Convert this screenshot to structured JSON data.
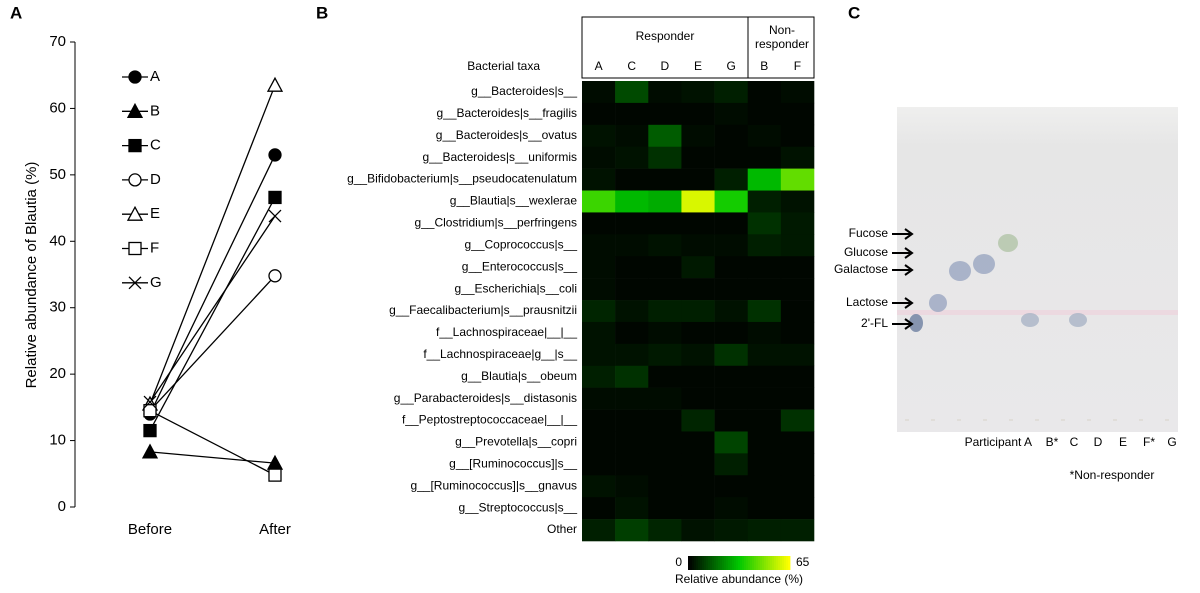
{
  "chart_data": [
    {
      "type": "line",
      "panel_label": "A",
      "y_label": "Relative abundance of Blautia (%)",
      "categories": [
        "Before",
        "After"
      ],
      "ylim": [
        0,
        70
      ],
      "yticks": [
        0,
        10,
        20,
        30,
        40,
        50,
        60,
        70
      ],
      "color": "#000000",
      "series": [
        {
          "name": "A",
          "marker": "circle-filled",
          "values": [
            14,
            53
          ]
        },
        {
          "name": "B",
          "marker": "triangle-filled",
          "values": [
            8.3,
            6.6
          ]
        },
        {
          "name": "C",
          "marker": "square-filled",
          "values": [
            11.5,
            46.6
          ]
        },
        {
          "name": "D",
          "marker": "circle-open",
          "values": [
            14.5,
            34.8
          ]
        },
        {
          "name": "E",
          "marker": "triangle-open",
          "values": [
            15.5,
            63.5
          ]
        },
        {
          "name": "F",
          "marker": "square-open",
          "values": [
            14.5,
            4.8
          ]
        },
        {
          "name": "G",
          "marker": "x",
          "values": [
            15.8,
            43.8
          ]
        }
      ]
    },
    {
      "type": "heatmap",
      "panel_label": "B",
      "row_header": "Bacterial taxa",
      "groups": [
        {
          "name": "Responder",
          "span": 5
        },
        {
          "name": "Non-responder",
          "span": 2
        }
      ],
      "columns": [
        "A",
        "C",
        "D",
        "E",
        "G",
        "B",
        "F"
      ],
      "rows": [
        "g__Bacteroides|s__",
        "g__Bacteroides|s__fragilis",
        "g__Bacteroides|s__ovatus",
        "g__Bacteroides|s__uniformis",
        "g__Bifidobacterium|s__pseudocatenulatum",
        "g__Blautia|s__wexlerae",
        "g__Clostridium|s__perfringens",
        "g__Coprococcus|s__",
        "g__Enterococcus|s__",
        "g__Escherichia|s__coli",
        "g__Faecalibacterium|s__prausnitzii",
        "f__Lachnospiraceae|__|__",
        "f__Lachnospiraceae|g__|s__",
        "g__Blautia|s__obeum",
        "g__Parabacteroides|s__distasonis",
        "f__Peptostreptococcaceae|__|__",
        "g__Prevotella|s__copri",
        "g__[Ruminococcus]|s__",
        "g__[Ruminococcus]|s__gnavus",
        "g__Streptococcus|s__",
        "Other"
      ],
      "values": [
        [
          2,
          12,
          2,
          3,
          5,
          1,
          2
        ],
        [
          1,
          1,
          1,
          1,
          2,
          1,
          1
        ],
        [
          3,
          2,
          15,
          2,
          1,
          2,
          1
        ],
        [
          2,
          3,
          8,
          1,
          1,
          1,
          3
        ],
        [
          3,
          1,
          1,
          1,
          5,
          30,
          45
        ],
        [
          40,
          30,
          28,
          60,
          35,
          5,
          3
        ],
        [
          1,
          1,
          1,
          1,
          1,
          8,
          4
        ],
        [
          2,
          2,
          3,
          2,
          2,
          5,
          4
        ],
        [
          2,
          1,
          1,
          4,
          1,
          1,
          1
        ],
        [
          2,
          1,
          1,
          1,
          1,
          1,
          1
        ],
        [
          6,
          3,
          5,
          5,
          3,
          8,
          1
        ],
        [
          3,
          1,
          2,
          1,
          1,
          2,
          1
        ],
        [
          3,
          3,
          4,
          3,
          8,
          3,
          3
        ],
        [
          5,
          8,
          1,
          1,
          1,
          1,
          1
        ],
        [
          2,
          2,
          2,
          1,
          1,
          1,
          1
        ],
        [
          1,
          1,
          1,
          6,
          1,
          1,
          8
        ],
        [
          1,
          1,
          1,
          1,
          11,
          1,
          1
        ],
        [
          1,
          1,
          1,
          1,
          5,
          1,
          1
        ],
        [
          3,
          2,
          1,
          1,
          1,
          1,
          1
        ],
        [
          1,
          3,
          1,
          1,
          2,
          1,
          1
        ],
        [
          5,
          10,
          6,
          3,
          4,
          5,
          5
        ]
      ],
      "zlim": [
        0,
        65
      ],
      "colorbar_ticks": [
        0,
        65
      ],
      "colorbar_label": "Relative abundance (%)",
      "colormap": [
        "#000000",
        "#00c800",
        "#ffff00"
      ]
    }
  ],
  "tlc": {
    "panel_label": "C",
    "spot_labels": [
      "Fucose",
      "Glucose",
      "Galactose",
      "Lactose",
      "2'-FL"
    ],
    "lanes": [
      "Participant A",
      "B*",
      "C",
      "D",
      "E",
      "F*",
      "G"
    ],
    "footnote": "*Non-responder"
  }
}
